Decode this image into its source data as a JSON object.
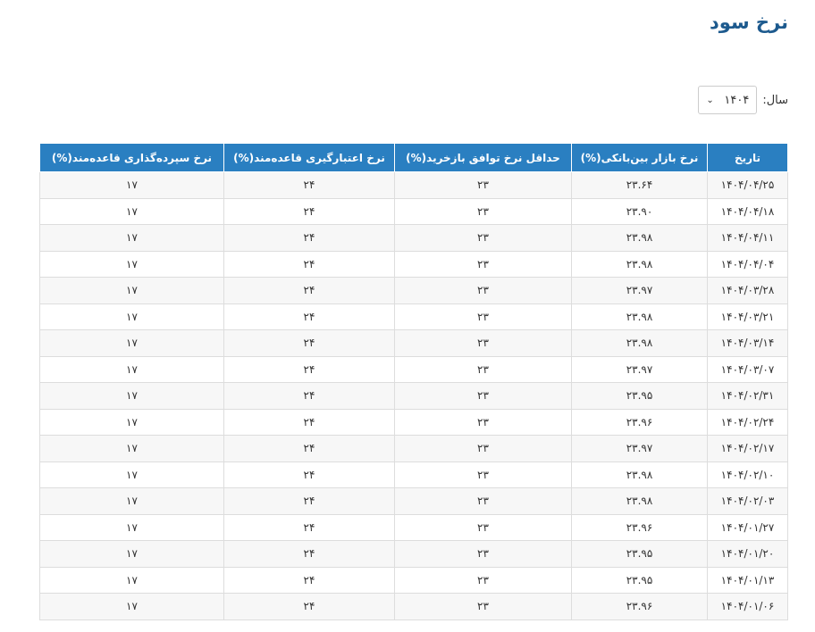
{
  "page": {
    "title": "نرخ سود"
  },
  "filter": {
    "year_label": "سال:",
    "year_value": "۱۴۰۴"
  },
  "table": {
    "headers": [
      "تاریخ",
      "نرخ بازار بین‌بانکی(%)",
      "حداقل نرخ توافق بازخرید(%)",
      "نرخ اعتبارگیری قاعده‌مند(%)",
      "نرخ سپرده‌گذاری قاعده‌مند(%)"
    ],
    "rows": [
      [
        "۱۴۰۴/۰۴/۲۵",
        "۲۳.۶۴",
        "۲۳",
        "۲۴",
        "۱۷"
      ],
      [
        "۱۴۰۴/۰۴/۱۸",
        "۲۳.۹۰",
        "۲۳",
        "۲۴",
        "۱۷"
      ],
      [
        "۱۴۰۴/۰۴/۱۱",
        "۲۳.۹۸",
        "۲۳",
        "۲۴",
        "۱۷"
      ],
      [
        "۱۴۰۴/۰۴/۰۴",
        "۲۳.۹۸",
        "۲۳",
        "۲۴",
        "۱۷"
      ],
      [
        "۱۴۰۴/۰۳/۲۸",
        "۲۳.۹۷",
        "۲۳",
        "۲۴",
        "۱۷"
      ],
      [
        "۱۴۰۴/۰۳/۲۱",
        "۲۳.۹۸",
        "۲۳",
        "۲۴",
        "۱۷"
      ],
      [
        "۱۴۰۴/۰۳/۱۴",
        "۲۳.۹۸",
        "۲۳",
        "۲۴",
        "۱۷"
      ],
      [
        "۱۴۰۴/۰۳/۰۷",
        "۲۳.۹۷",
        "۲۳",
        "۲۴",
        "۱۷"
      ],
      [
        "۱۴۰۴/۰۲/۳۱",
        "۲۳.۹۵",
        "۲۳",
        "۲۴",
        "۱۷"
      ],
      [
        "۱۴۰۴/۰۲/۲۴",
        "۲۳.۹۶",
        "۲۳",
        "۲۴",
        "۱۷"
      ],
      [
        "۱۴۰۴/۰۲/۱۷",
        "۲۳.۹۷",
        "۲۳",
        "۲۴",
        "۱۷"
      ],
      [
        "۱۴۰۴/۰۲/۱۰",
        "۲۳.۹۸",
        "۲۳",
        "۲۴",
        "۱۷"
      ],
      [
        "۱۴۰۴/۰۲/۰۳",
        "۲۳.۹۸",
        "۲۳",
        "۲۴",
        "۱۷"
      ],
      [
        "۱۴۰۴/۰۱/۲۷",
        "۲۳.۹۶",
        "۲۳",
        "۲۴",
        "۱۷"
      ],
      [
        "۱۴۰۴/۰۱/۲۰",
        "۲۳.۹۵",
        "۲۳",
        "۲۴",
        "۱۷"
      ],
      [
        "۱۴۰۴/۰۱/۱۳",
        "۲۳.۹۵",
        "۲۳",
        "۲۴",
        "۱۷"
      ],
      [
        "۱۴۰۴/۰۱/۰۶",
        "۲۳.۹۶",
        "۲۳",
        "۲۴",
        "۱۷"
      ]
    ]
  },
  "colors": {
    "title": "#1d5a8e",
    "header_bg": "#2a7fc1",
    "header_text": "#ffffff",
    "row_alt_bg": "#f7f7f7",
    "border": "#dddddd"
  },
  "icons": {
    "select_arrow": "chevron-down-icon"
  }
}
